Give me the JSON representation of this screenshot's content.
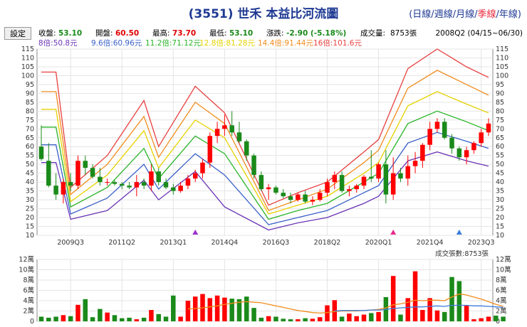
{
  "title": "(3551) 世禾 本益比河流圖",
  "period_links": [
    {
      "label": "日線",
      "active": false
    },
    {
      "label": "週線",
      "active": false
    },
    {
      "label": "月線",
      "active": false
    },
    {
      "label": "季線",
      "active": true
    },
    {
      "label": "年線",
      "active": false
    }
  ],
  "settings_label": "設定",
  "info": {
    "close_label": "收盤:",
    "close": "53.10",
    "open_label": "開盤:",
    "open": "60.50",
    "high_label": "最高:",
    "high": "73.70",
    "low_label": "最低:",
    "low": "53.10",
    "change_label": "漲跌:",
    "change": "-2.90 (-5.18%)",
    "volume_label": "成交量:",
    "volume": "8753張",
    "period": "2008Q2 (04/15~06/30)"
  },
  "colors": {
    "up": "#ff0000",
    "down": "#1a8a1a",
    "volume_ma_orange": "#f08c1e",
    "volume_ma_blue": "#3c7ddc",
    "pe8": "#6b35b5",
    "pe9_6": "#3a60c8",
    "pe11_2": "#28b428",
    "pe12_8": "#e6d200",
    "pe14_4": "#f08c1e",
    "pe16": "#e84040"
  },
  "chart_data": [
    {
      "type": "line",
      "title": "",
      "note": "PE river bands with quarterly candlesticks",
      "x_tick_labels": [
        "2009Q3",
        "2011Q2",
        "2013Q1",
        "2014Q4",
        "2016Q3",
        "2018Q2",
        "2020Q1",
        "2021Q4",
        "2023Q3"
      ],
      "x_tick_index": [
        4,
        11,
        18,
        25,
        32,
        39,
        46,
        53,
        60
      ],
      "ylim": [
        10,
        115
      ],
      "y_ticks": [
        10,
        15,
        20,
        25,
        30,
        35,
        40,
        45,
        50,
        55,
        60,
        65,
        70,
        75,
        80,
        85,
        90,
        95,
        100,
        105,
        110,
        115
      ],
      "grid": true,
      "legend_position": "top",
      "band_node_index": [
        0,
        2,
        4,
        9,
        14,
        16,
        21,
        25,
        31,
        35,
        39,
        44,
        46,
        50,
        54,
        58,
        61
      ],
      "series": [
        {
          "name": "8倍:50.8元",
          "color_key": "pe8",
          "values": [
            51,
            51,
            19,
            24,
            41,
            30,
            46,
            26,
            13,
            17,
            20,
            28,
            32,
            52,
            57,
            52,
            49
          ]
        },
        {
          "name": "9.6倍:60.96元",
          "color_key": "pe9_6",
          "values": [
            61,
            61,
            22,
            31,
            50,
            36,
            56,
            44,
            16,
            20,
            24,
            34,
            38,
            62,
            68,
            63,
            59
          ]
        },
        {
          "name": "11.2倍:71.12元",
          "color_key": "pe11_2",
          "values": [
            71,
            71,
            26,
            37,
            59,
            42,
            66,
            56,
            19,
            24,
            28,
            40,
            45,
            73,
            80,
            74,
            69
          ]
        },
        {
          "name": "12.8倍:81.28元",
          "color_key": "pe12_8",
          "values": [
            81,
            81,
            29,
            44,
            69,
            48,
            75,
            65,
            22,
            27,
            32,
            45,
            51,
            83,
            91,
            84,
            79
          ]
        },
        {
          "name": "14.4倍:91.44元",
          "color_key": "pe14_4",
          "values": [
            91,
            91,
            33,
            50,
            77,
            54,
            85,
            73,
            24,
            30,
            36,
            51,
            58,
            93,
            103,
            95,
            89
          ]
        },
        {
          "name": "16倍:101.6元",
          "color_key": "pe16",
          "values": [
            102,
            102,
            37,
            55,
            86,
            60,
            94,
            79,
            27,
            34,
            40,
            57,
            64,
            104,
            115,
            105,
            99
          ]
        }
      ],
      "candles": [
        {
          "o": 60,
          "h": 72,
          "l": 52,
          "c": 53
        },
        {
          "o": 52,
          "h": 62,
          "l": 37,
          "c": 38
        },
        {
          "o": 38,
          "h": 45,
          "l": 30,
          "c": 33
        },
        {
          "o": 33,
          "h": 42,
          "l": 28,
          "c": 40
        },
        {
          "o": 40,
          "h": 45,
          "l": 35,
          "c": 38
        },
        {
          "o": 38,
          "h": 55,
          "l": 36,
          "c": 52
        },
        {
          "o": 52,
          "h": 55,
          "l": 44,
          "c": 48
        },
        {
          "o": 48,
          "h": 50,
          "l": 42,
          "c": 43
        },
        {
          "o": 43,
          "h": 48,
          "l": 38,
          "c": 40
        },
        {
          "o": 40,
          "h": 42,
          "l": 38,
          "c": 40
        },
        {
          "o": 40,
          "h": 41,
          "l": 38,
          "c": 39
        },
        {
          "o": 39,
          "h": 40,
          "l": 36,
          "c": 38
        },
        {
          "o": 38,
          "h": 40,
          "l": 36,
          "c": 37
        },
        {
          "o": 37,
          "h": 44,
          "l": 32,
          "c": 40
        },
        {
          "o": 40,
          "h": 42,
          "l": 36,
          "c": 38
        },
        {
          "o": 38,
          "h": 50,
          "l": 35,
          "c": 46
        },
        {
          "o": 46,
          "h": 48,
          "l": 38,
          "c": 40
        },
        {
          "o": 40,
          "h": 42,
          "l": 36,
          "c": 37
        },
        {
          "o": 37,
          "h": 39,
          "l": 33,
          "c": 35
        },
        {
          "o": 35,
          "h": 40,
          "l": 34,
          "c": 38
        },
        {
          "o": 38,
          "h": 44,
          "l": 36,
          "c": 42
        },
        {
          "o": 42,
          "h": 47,
          "l": 40,
          "c": 45
        },
        {
          "o": 45,
          "h": 53,
          "l": 42,
          "c": 51
        },
        {
          "o": 51,
          "h": 68,
          "l": 48,
          "c": 66
        },
        {
          "o": 66,
          "h": 74,
          "l": 62,
          "c": 70
        },
        {
          "o": 70,
          "h": 78,
          "l": 66,
          "c": 72
        },
        {
          "o": 72,
          "h": 80,
          "l": 66,
          "c": 68
        },
        {
          "o": 68,
          "h": 74,
          "l": 62,
          "c": 63
        },
        {
          "o": 63,
          "h": 64,
          "l": 52,
          "c": 55
        },
        {
          "o": 55,
          "h": 56,
          "l": 42,
          "c": 44
        },
        {
          "o": 44,
          "h": 46,
          "l": 35,
          "c": 36
        },
        {
          "o": 36,
          "h": 39,
          "l": 30,
          "c": 37
        },
        {
          "o": 37,
          "h": 38,
          "l": 33,
          "c": 34
        },
        {
          "o": 34,
          "h": 36,
          "l": 31,
          "c": 32
        },
        {
          "o": 32,
          "h": 34,
          "l": 28,
          "c": 30
        },
        {
          "o": 30,
          "h": 34,
          "l": 29,
          "c": 33
        },
        {
          "o": 33,
          "h": 35,
          "l": 28,
          "c": 29
        },
        {
          "o": 29,
          "h": 32,
          "l": 27,
          "c": 30
        },
        {
          "o": 30,
          "h": 36,
          "l": 29,
          "c": 34
        },
        {
          "o": 34,
          "h": 42,
          "l": 32,
          "c": 40
        },
        {
          "o": 40,
          "h": 46,
          "l": 36,
          "c": 44
        },
        {
          "o": 44,
          "h": 46,
          "l": 34,
          "c": 35
        },
        {
          "o": 35,
          "h": 38,
          "l": 32,
          "c": 36
        },
        {
          "o": 36,
          "h": 39,
          "l": 34,
          "c": 38
        },
        {
          "o": 38,
          "h": 44,
          "l": 36,
          "c": 43
        },
        {
          "o": 43,
          "h": 58,
          "l": 40,
          "c": 42
        },
        {
          "o": 42,
          "h": 51,
          "l": 40,
          "c": 50
        },
        {
          "o": 50,
          "h": 58,
          "l": 28,
          "c": 33
        },
        {
          "o": 33,
          "h": 54,
          "l": 30,
          "c": 45
        },
        {
          "o": 45,
          "h": 48,
          "l": 40,
          "c": 42
        },
        {
          "o": 42,
          "h": 55,
          "l": 38,
          "c": 49
        },
        {
          "o": 49,
          "h": 57,
          "l": 45,
          "c": 52
        },
        {
          "o": 52,
          "h": 62,
          "l": 48,
          "c": 61
        },
        {
          "o": 61,
          "h": 74,
          "l": 58,
          "c": 70
        },
        {
          "o": 70,
          "h": 76,
          "l": 68,
          "c": 74
        },
        {
          "o": 74,
          "h": 76,
          "l": 64,
          "c": 65
        },
        {
          "o": 65,
          "h": 67,
          "l": 56,
          "c": 59
        },
        {
          "o": 59,
          "h": 60,
          "l": 52,
          "c": 54
        },
        {
          "o": 54,
          "h": 60,
          "l": 50,
          "c": 58
        },
        {
          "o": 58,
          "h": 63,
          "l": 56,
          "c": 62
        },
        {
          "o": 62,
          "h": 70,
          "l": 60,
          "c": 68
        },
        {
          "o": 68,
          "h": 76,
          "l": 66,
          "c": 73
        }
      ],
      "markers": [
        {
          "index": 21,
          "color": "#9932cc"
        },
        {
          "index": 48,
          "color": "#e8288c"
        },
        {
          "index": 57,
          "color": "#3c7ddc"
        }
      ]
    },
    {
      "type": "bar",
      "title": "",
      "volume_label": "成交張數:",
      "volume_value": "8753張",
      "ylim": [
        0,
        12
      ],
      "y_tick_labels": [
        "0",
        "2萬",
        "4萬",
        "6萬",
        "8萬",
        "10萬",
        "12萬"
      ],
      "unit_note": "values in 萬張",
      "values": [
        0.9,
        0.7,
        0.9,
        1.2,
        1.0,
        3.2,
        4.3,
        0.8,
        2.4,
        1.7,
        1.2,
        0.6,
        0.7,
        0.4,
        0.7,
        2.2,
        1.4,
        0.9,
        5.0,
        0.9,
        4.0,
        4.8,
        5.3,
        4.5,
        5.0,
        4.6,
        4.4,
        4.3,
        4.8,
        2.6,
        0.7,
        1.0,
        0.9,
        0.5,
        0.4,
        0.4,
        0.6,
        0.5,
        0.8,
        3.1,
        4.1,
        0.9,
        1.5,
        1.0,
        1.3,
        1.6,
        1.8,
        4.7,
        8.8,
        1.3,
        4.5,
        9.7,
        2.2,
        4.5,
        2.1,
        1.8,
        8.6,
        7.8,
        3.1,
        0.4,
        0.6,
        0.9,
        1.1,
        0.9
      ],
      "ma_orange": [
        null,
        null,
        null,
        null,
        null,
        null,
        null,
        null,
        null,
        null,
        null,
        null,
        null,
        null,
        null,
        null,
        null,
        null,
        null,
        null,
        2.4,
        2.5,
        2.6,
        2.8,
        3.0,
        3.3,
        3.5,
        3.7,
        3.8,
        3.7,
        3.6,
        3.3,
        3.0,
        2.7,
        2.4,
        2.1,
        1.9,
        1.7,
        1.6,
        1.7,
        1.9,
        2.0,
        2.0,
        2.0,
        2.1,
        2.2,
        2.3,
        2.6,
        3.2,
        3.4,
        3.7,
        4.1,
        4.0,
        4.1,
        4.1,
        4.0,
        4.7,
        5.3,
        5.1,
        4.7,
        4.3,
        3.8,
        3.3,
        2.9
      ],
      "ma_blue": [
        null,
        null,
        null,
        null,
        null,
        null,
        null,
        null,
        null,
        null,
        null,
        null,
        null,
        null,
        null,
        null,
        null,
        null,
        null,
        null,
        null,
        null,
        null,
        null,
        null,
        null,
        null,
        null,
        null,
        null,
        null,
        null,
        null,
        null,
        null,
        null,
        null,
        null,
        null,
        null,
        2.0,
        2.1,
        2.1,
        2.1,
        2.1,
        2.2,
        2.2,
        2.3,
        2.5,
        2.6,
        2.7,
        2.8,
        2.8,
        2.9,
        3.0,
        2.9,
        3.1,
        3.1,
        3.1,
        3.0,
        3.0,
        2.9,
        2.8,
        2.7
      ]
    }
  ]
}
